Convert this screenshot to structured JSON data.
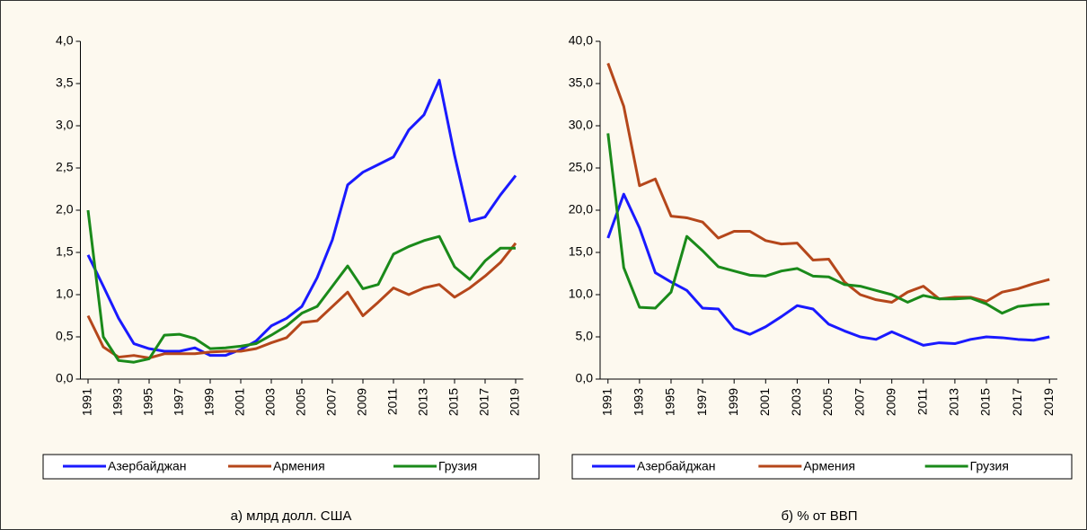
{
  "chart_data": [
    {
      "type": "line",
      "title": "а) млрд долл. США",
      "x": [
        1991,
        1992,
        1993,
        1994,
        1995,
        1996,
        1997,
        1998,
        1999,
        2000,
        2001,
        2002,
        2003,
        2004,
        2005,
        2006,
        2007,
        2008,
        2009,
        2010,
        2011,
        2012,
        2013,
        2014,
        2015,
        2016,
        2017,
        2018,
        2019
      ],
      "xlim": [
        1990.5,
        2019.5
      ],
      "xticks": [
        1991,
        1993,
        1995,
        1997,
        1999,
        2001,
        2003,
        2005,
        2007,
        2009,
        2011,
        2013,
        2015,
        2017,
        2019
      ],
      "ylim": [
        0,
        4
      ],
      "yticks": [
        {
          "value": 0,
          "label": "0,0"
        },
        {
          "value": 0.5,
          "label": "0,5"
        },
        {
          "value": 1,
          "label": "1,0"
        },
        {
          "value": 1.5,
          "label": "1,5"
        },
        {
          "value": 2,
          "label": "2,0"
        },
        {
          "value": 2.5,
          "label": "2,5"
        },
        {
          "value": 3,
          "label": "3,0"
        },
        {
          "value": 3.5,
          "label": "3,5"
        },
        {
          "value": 4,
          "label": "4,0"
        }
      ],
      "series": [
        {
          "name": "Азербайджан",
          "color": "#1a1aff",
          "values": [
            1.47,
            1.1,
            0.72,
            0.42,
            0.36,
            0.33,
            0.33,
            0.37,
            0.28,
            0.28,
            0.35,
            0.45,
            0.63,
            0.72,
            0.86,
            1.2,
            1.65,
            2.3,
            2.45,
            2.54,
            2.63,
            2.95,
            3.13,
            3.54,
            2.65,
            1.87,
            1.92,
            2.18,
            2.41
          ]
        },
        {
          "name": "Армения",
          "color": "#b5471b",
          "values": [
            0.75,
            0.38,
            0.26,
            0.28,
            0.25,
            0.3,
            0.3,
            0.3,
            0.32,
            0.33,
            0.33,
            0.36,
            0.43,
            0.49,
            0.67,
            0.69,
            0.86,
            1.03,
            0.75,
            0.91,
            1.08,
            1.0,
            1.08,
            1.12,
            0.97,
            1.08,
            1.22,
            1.38,
            1.61
          ]
        },
        {
          "name": "Грузия",
          "color": "#1a8a1a",
          "values": [
            2.0,
            0.5,
            0.22,
            0.2,
            0.24,
            0.52,
            0.53,
            0.48,
            0.36,
            0.37,
            0.39,
            0.42,
            0.52,
            0.63,
            0.78,
            0.86,
            1.1,
            1.34,
            1.07,
            1.12,
            1.48,
            1.57,
            1.64,
            1.69,
            1.33,
            1.18,
            1.4,
            1.55,
            1.55
          ]
        }
      ]
    },
    {
      "type": "line",
      "title": "б) % от ВВП",
      "x": [
        1991,
        1992,
        1993,
        1994,
        1995,
        1996,
        1997,
        1998,
        1999,
        2000,
        2001,
        2002,
        2003,
        2004,
        2005,
        2006,
        2007,
        2008,
        2009,
        2010,
        2011,
        2012,
        2013,
        2014,
        2015,
        2016,
        2017,
        2018,
        2019
      ],
      "xlim": [
        1990.5,
        2019.5
      ],
      "xticks": [
        1991,
        1993,
        1995,
        1997,
        1999,
        2001,
        2003,
        2005,
        2007,
        2009,
        2011,
        2013,
        2015,
        2017,
        2019
      ],
      "ylim": [
        0,
        40
      ],
      "yticks": [
        {
          "value": 0,
          "label": "0,0"
        },
        {
          "value": 5,
          "label": "5,0"
        },
        {
          "value": 10,
          "label": "10,0"
        },
        {
          "value": 15,
          "label": "15,0"
        },
        {
          "value": 20,
          "label": "20,0"
        },
        {
          "value": 25,
          "label": "25,0"
        },
        {
          "value": 30,
          "label": "30,0"
        },
        {
          "value": 35,
          "label": "35,0"
        },
        {
          "value": 40,
          "label": "40,0"
        }
      ],
      "series": [
        {
          "name": "Азербайджан",
          "color": "#1a1aff",
          "values": [
            16.7,
            21.9,
            17.9,
            12.6,
            11.5,
            10.5,
            8.4,
            8.3,
            6.0,
            5.3,
            6.2,
            7.4,
            8.7,
            8.3,
            6.5,
            5.7,
            5.0,
            4.7,
            5.6,
            4.8,
            4.0,
            4.3,
            4.2,
            4.7,
            5.0,
            4.9,
            4.7,
            4.6,
            5.0
          ]
        },
        {
          "name": "Армения",
          "color": "#b5471b",
          "values": [
            37.4,
            32.3,
            22.9,
            23.7,
            19.3,
            19.1,
            18.6,
            16.7,
            17.5,
            17.5,
            16.4,
            16.0,
            16.1,
            14.1,
            14.2,
            11.5,
            10.0,
            9.4,
            9.1,
            10.3,
            11.0,
            9.5,
            9.7,
            9.7,
            9.2,
            10.3,
            10.7,
            11.3,
            11.8
          ]
        },
        {
          "name": "Грузия",
          "color": "#1a8a1a",
          "values": [
            29.1,
            13.2,
            8.5,
            8.4,
            10.3,
            16.9,
            15.2,
            13.3,
            12.8,
            12.3,
            12.2,
            12.8,
            13.1,
            12.2,
            12.1,
            11.2,
            11.0,
            10.5,
            10.0,
            9.1,
            9.9,
            9.5,
            9.5,
            9.6,
            8.9,
            7.8,
            8.6,
            8.8,
            8.9
          ]
        }
      ]
    }
  ]
}
